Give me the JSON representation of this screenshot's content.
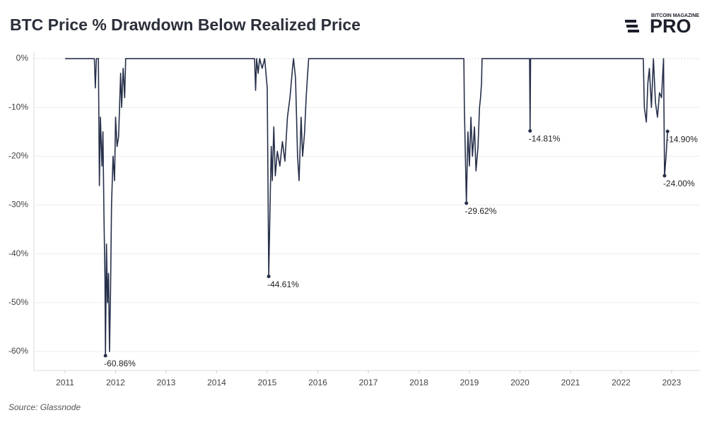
{
  "chart_data": {
    "type": "line",
    "title": "BTC Price % Drawdown Below Realized Price",
    "source": "Source: Glassnode",
    "logo": {
      "small": "BITCOIN MAGAZINE",
      "big": "PRO"
    },
    "color": "#27304a",
    "grid": true,
    "xlim": [
      2010.385,
      2023.56
    ],
    "xticks": [
      2011,
      2012,
      2013,
      2014,
      2015,
      2016,
      2017,
      2018,
      2019,
      2020,
      2021,
      2022,
      2023
    ],
    "ylim": [
      -63.9,
      1.45
    ],
    "yticks": [
      {
        "value": 0,
        "label": "0%"
      },
      {
        "value": -10,
        "label": "-10%"
      },
      {
        "value": -20,
        "label": "-20%"
      },
      {
        "value": -30,
        "label": "-30%"
      },
      {
        "value": -40,
        "label": "-40%"
      },
      {
        "value": -50,
        "label": "-50%"
      },
      {
        "value": -60,
        "label": "-60%"
      }
    ],
    "x": [
      2011.0,
      2011.58,
      2011.6,
      2011.62,
      2011.66,
      2011.68,
      2011.7,
      2011.73,
      2011.75,
      2011.77,
      2011.79,
      2011.8,
      2011.82,
      2011.84,
      2011.86,
      2011.88,
      2011.9,
      2011.92,
      2011.95,
      2011.98,
      2012.0,
      2012.03,
      2012.06,
      2012.1,
      2012.12,
      2012.15,
      2012.18,
      2012.2,
      2012.22,
      2014.75,
      2014.77,
      2014.79,
      2014.82,
      2014.85,
      2014.9,
      2014.95,
      2015.0,
      2015.03,
      2015.06,
      2015.08,
      2015.1,
      2015.13,
      2015.16,
      2015.2,
      2015.25,
      2015.3,
      2015.35,
      2015.4,
      2015.45,
      2015.5,
      2015.52,
      2015.56,
      2015.6,
      2015.63,
      2015.67,
      2015.7,
      2015.74,
      2015.77,
      2015.8,
      2015.82,
      2018.89,
      2018.9,
      2018.92,
      2018.94,
      2018.97,
      2019.0,
      2019.03,
      2019.06,
      2019.1,
      2019.13,
      2019.17,
      2019.2,
      2019.22,
      2019.24,
      2019.25,
      2020.19,
      2020.2,
      2020.21,
      2022.44,
      2022.46,
      2022.5,
      2022.53,
      2022.56,
      2022.6,
      2022.64,
      2022.68,
      2022.72,
      2022.76,
      2022.8,
      2022.84,
      2022.86,
      2022.89,
      2022.92
    ],
    "values": [
      0,
      0,
      -6,
      0,
      0,
      -26,
      -12,
      -22,
      -15,
      -32,
      -45,
      -60.86,
      -38,
      -50,
      -44,
      -60,
      -48,
      -30,
      -20,
      -25,
      -12,
      -18,
      -16,
      -3,
      -10,
      -2,
      -8,
      0,
      0,
      0,
      -6.5,
      0,
      -3,
      0,
      -2,
      0,
      -6,
      -44.61,
      -28,
      -18,
      -25,
      -14,
      -24,
      -19,
      -22,
      -17,
      -21,
      -12,
      -8,
      -2,
      0,
      -4,
      -20,
      -25,
      -12,
      -20,
      -15,
      -8,
      -3,
      0,
      0,
      -10,
      -20,
      -29.62,
      -15,
      -22,
      -12,
      -20,
      -14,
      -23,
      -18,
      -10,
      -8,
      -5,
      0,
      0,
      -14.81,
      0,
      0,
      -10,
      -13,
      -5,
      -2,
      -10,
      0,
      -9,
      -12,
      -7,
      -8,
      0,
      -24.0,
      -20,
      -14.9
    ],
    "annotations": [
      {
        "x": 2011.8,
        "value": -60.86,
        "label": "-60.86%"
      },
      {
        "x": 2015.03,
        "value": -44.61,
        "label": "-44.61%"
      },
      {
        "x": 2018.94,
        "value": -29.62,
        "label": "-29.62%"
      },
      {
        "x": 2020.2,
        "value": -14.81,
        "label": "-14.81%"
      },
      {
        "x": 2022.86,
        "value": -24.0,
        "label": "-24.00%"
      },
      {
        "x": 2022.92,
        "value": -14.9,
        "label": "-14.90%"
      }
    ]
  }
}
